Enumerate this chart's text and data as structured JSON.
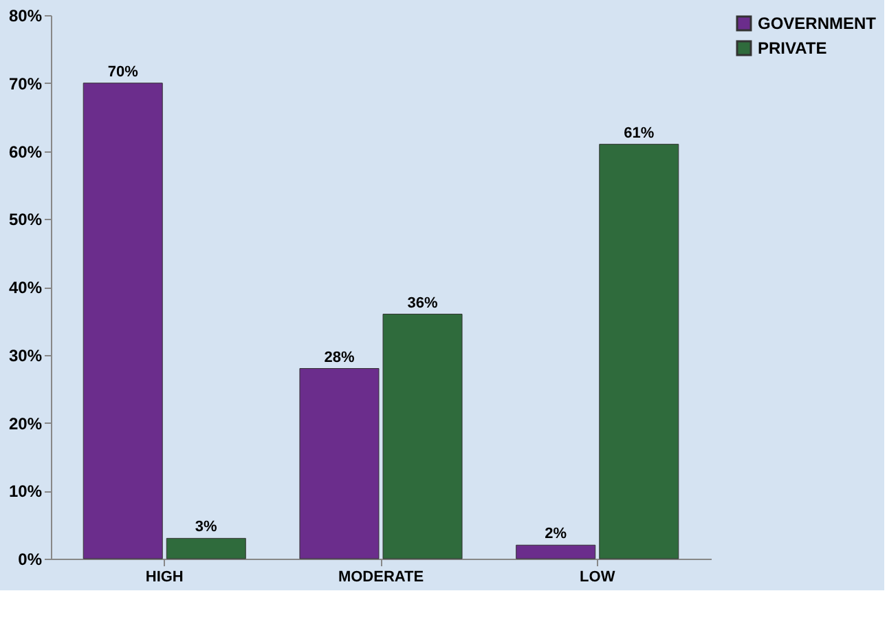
{
  "chart_data": {
    "type": "bar",
    "categories": [
      "HIGH",
      "MODERATE",
      "LOW"
    ],
    "series": [
      {
        "name": "GOVERNMENT",
        "color": "#6b2d8c",
        "values": [
          70,
          28,
          2
        ],
        "value_labels": [
          "70%",
          "28%",
          "2%"
        ]
      },
      {
        "name": "PRIVATE",
        "color": "#2f6b3c",
        "values": [
          3,
          36,
          61
        ],
        "value_labels": [
          "3%",
          "36%",
          "61%"
        ]
      }
    ],
    "ylim": [
      0,
      80
    ],
    "yticks": [
      {
        "value": 0,
        "label": "0%"
      },
      {
        "value": 10,
        "label": "10%"
      },
      {
        "value": 20,
        "label": "20%"
      },
      {
        "value": 30,
        "label": "30%"
      },
      {
        "value": 40,
        "label": "40%"
      },
      {
        "value": 50,
        "label": "50%"
      },
      {
        "value": 60,
        "label": "60%"
      },
      {
        "value": 70,
        "label": "70%"
      },
      {
        "value": 80,
        "label": "80%"
      }
    ],
    "grid": false,
    "legend": "right"
  }
}
